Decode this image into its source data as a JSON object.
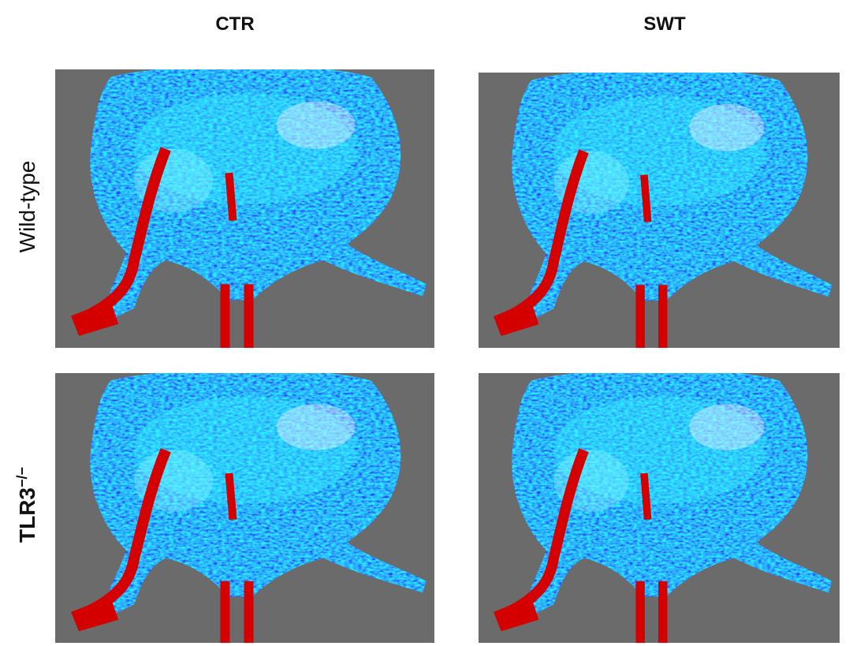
{
  "columns": [
    "CTR",
    "SWT"
  ],
  "rows": [
    {
      "label": "Wild-type"
    },
    {
      "label": "TLR3",
      "sup": "−/−"
    }
  ]
}
